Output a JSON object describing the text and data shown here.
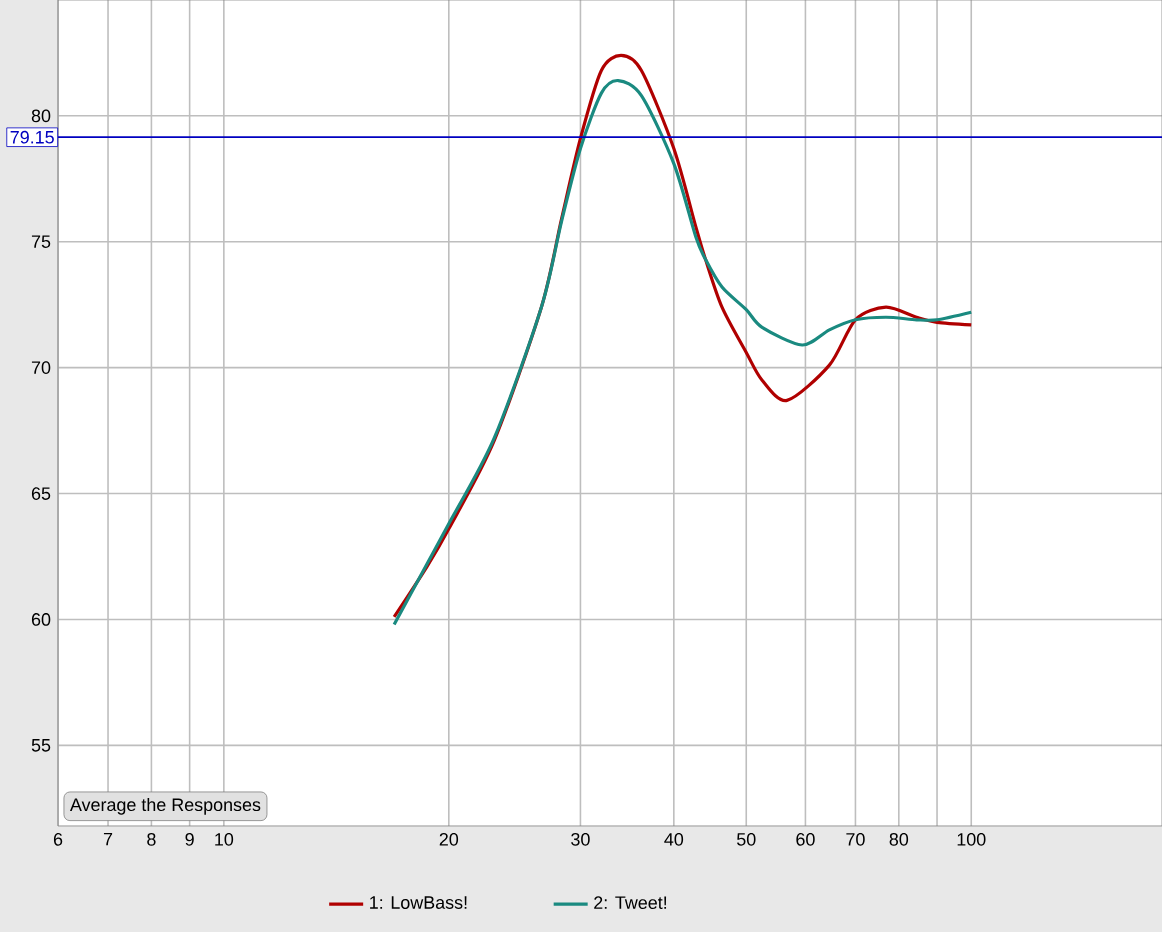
{
  "chart_data": {
    "type": "line",
    "xlim": [
      6,
      180
    ],
    "ylim": [
      51.8,
      84.6
    ],
    "log": "x",
    "xticks": [
      6,
      7,
      8,
      9,
      10,
      20,
      30,
      40,
      50,
      60,
      70,
      80,
      {
        "value": 90,
        "label": null
      },
      100
    ],
    "yticks": [
      55,
      60,
      65,
      70,
      75,
      80
    ],
    "grid": true,
    "legend": "bottom",
    "marker": "none",
    "line_style": "solid",
    "ref_lines": [
      {
        "axis": "y",
        "value": 79.15,
        "label": "79.15",
        "color": "#0000c0"
      }
    ],
    "annotations": [
      "Average the Responses"
    ],
    "series": [
      {
        "name": "1: LowBass!",
        "color": "#b00000",
        "x": [
          16.9,
          18.7,
          20,
          23,
          26.6,
          28.3,
          30,
          32,
          34,
          36.2,
          40,
          42.8,
          44.1,
          46.4,
          50,
          52.5,
          56.7,
          64.6,
          70,
          76.9,
          84.5,
          90,
          100
        ],
        "values": [
          60.1,
          62.1,
          63.6,
          67.1,
          72.4,
          75.9,
          79.1,
          81.8,
          82.4,
          81.8,
          78.7,
          75.6,
          74.3,
          72.4,
          70.6,
          69.5,
          68.7,
          70.1,
          71.9,
          72.4,
          72.0,
          71.8,
          71.7
        ]
      },
      {
        "name": "2: Tweet!",
        "color": "#1a8a80",
        "x": [
          16.9,
          18.7,
          20,
          23,
          26.6,
          28.3,
          30,
          32,
          33.7,
          36.2,
          40,
          42.8,
          44.1,
          46.4,
          50,
          52.5,
          59.4,
          64.6,
          70,
          76.9,
          84.5,
          90,
          100
        ],
        "values": [
          59.8,
          62.2,
          63.8,
          67.2,
          72.4,
          75.8,
          78.7,
          80.9,
          81.4,
          80.8,
          78.1,
          75.2,
          74.3,
          73.2,
          72.3,
          71.6,
          70.9,
          71.5,
          71.9,
          72.0,
          71.9,
          71.9,
          72.2
        ]
      }
    ]
  }
}
